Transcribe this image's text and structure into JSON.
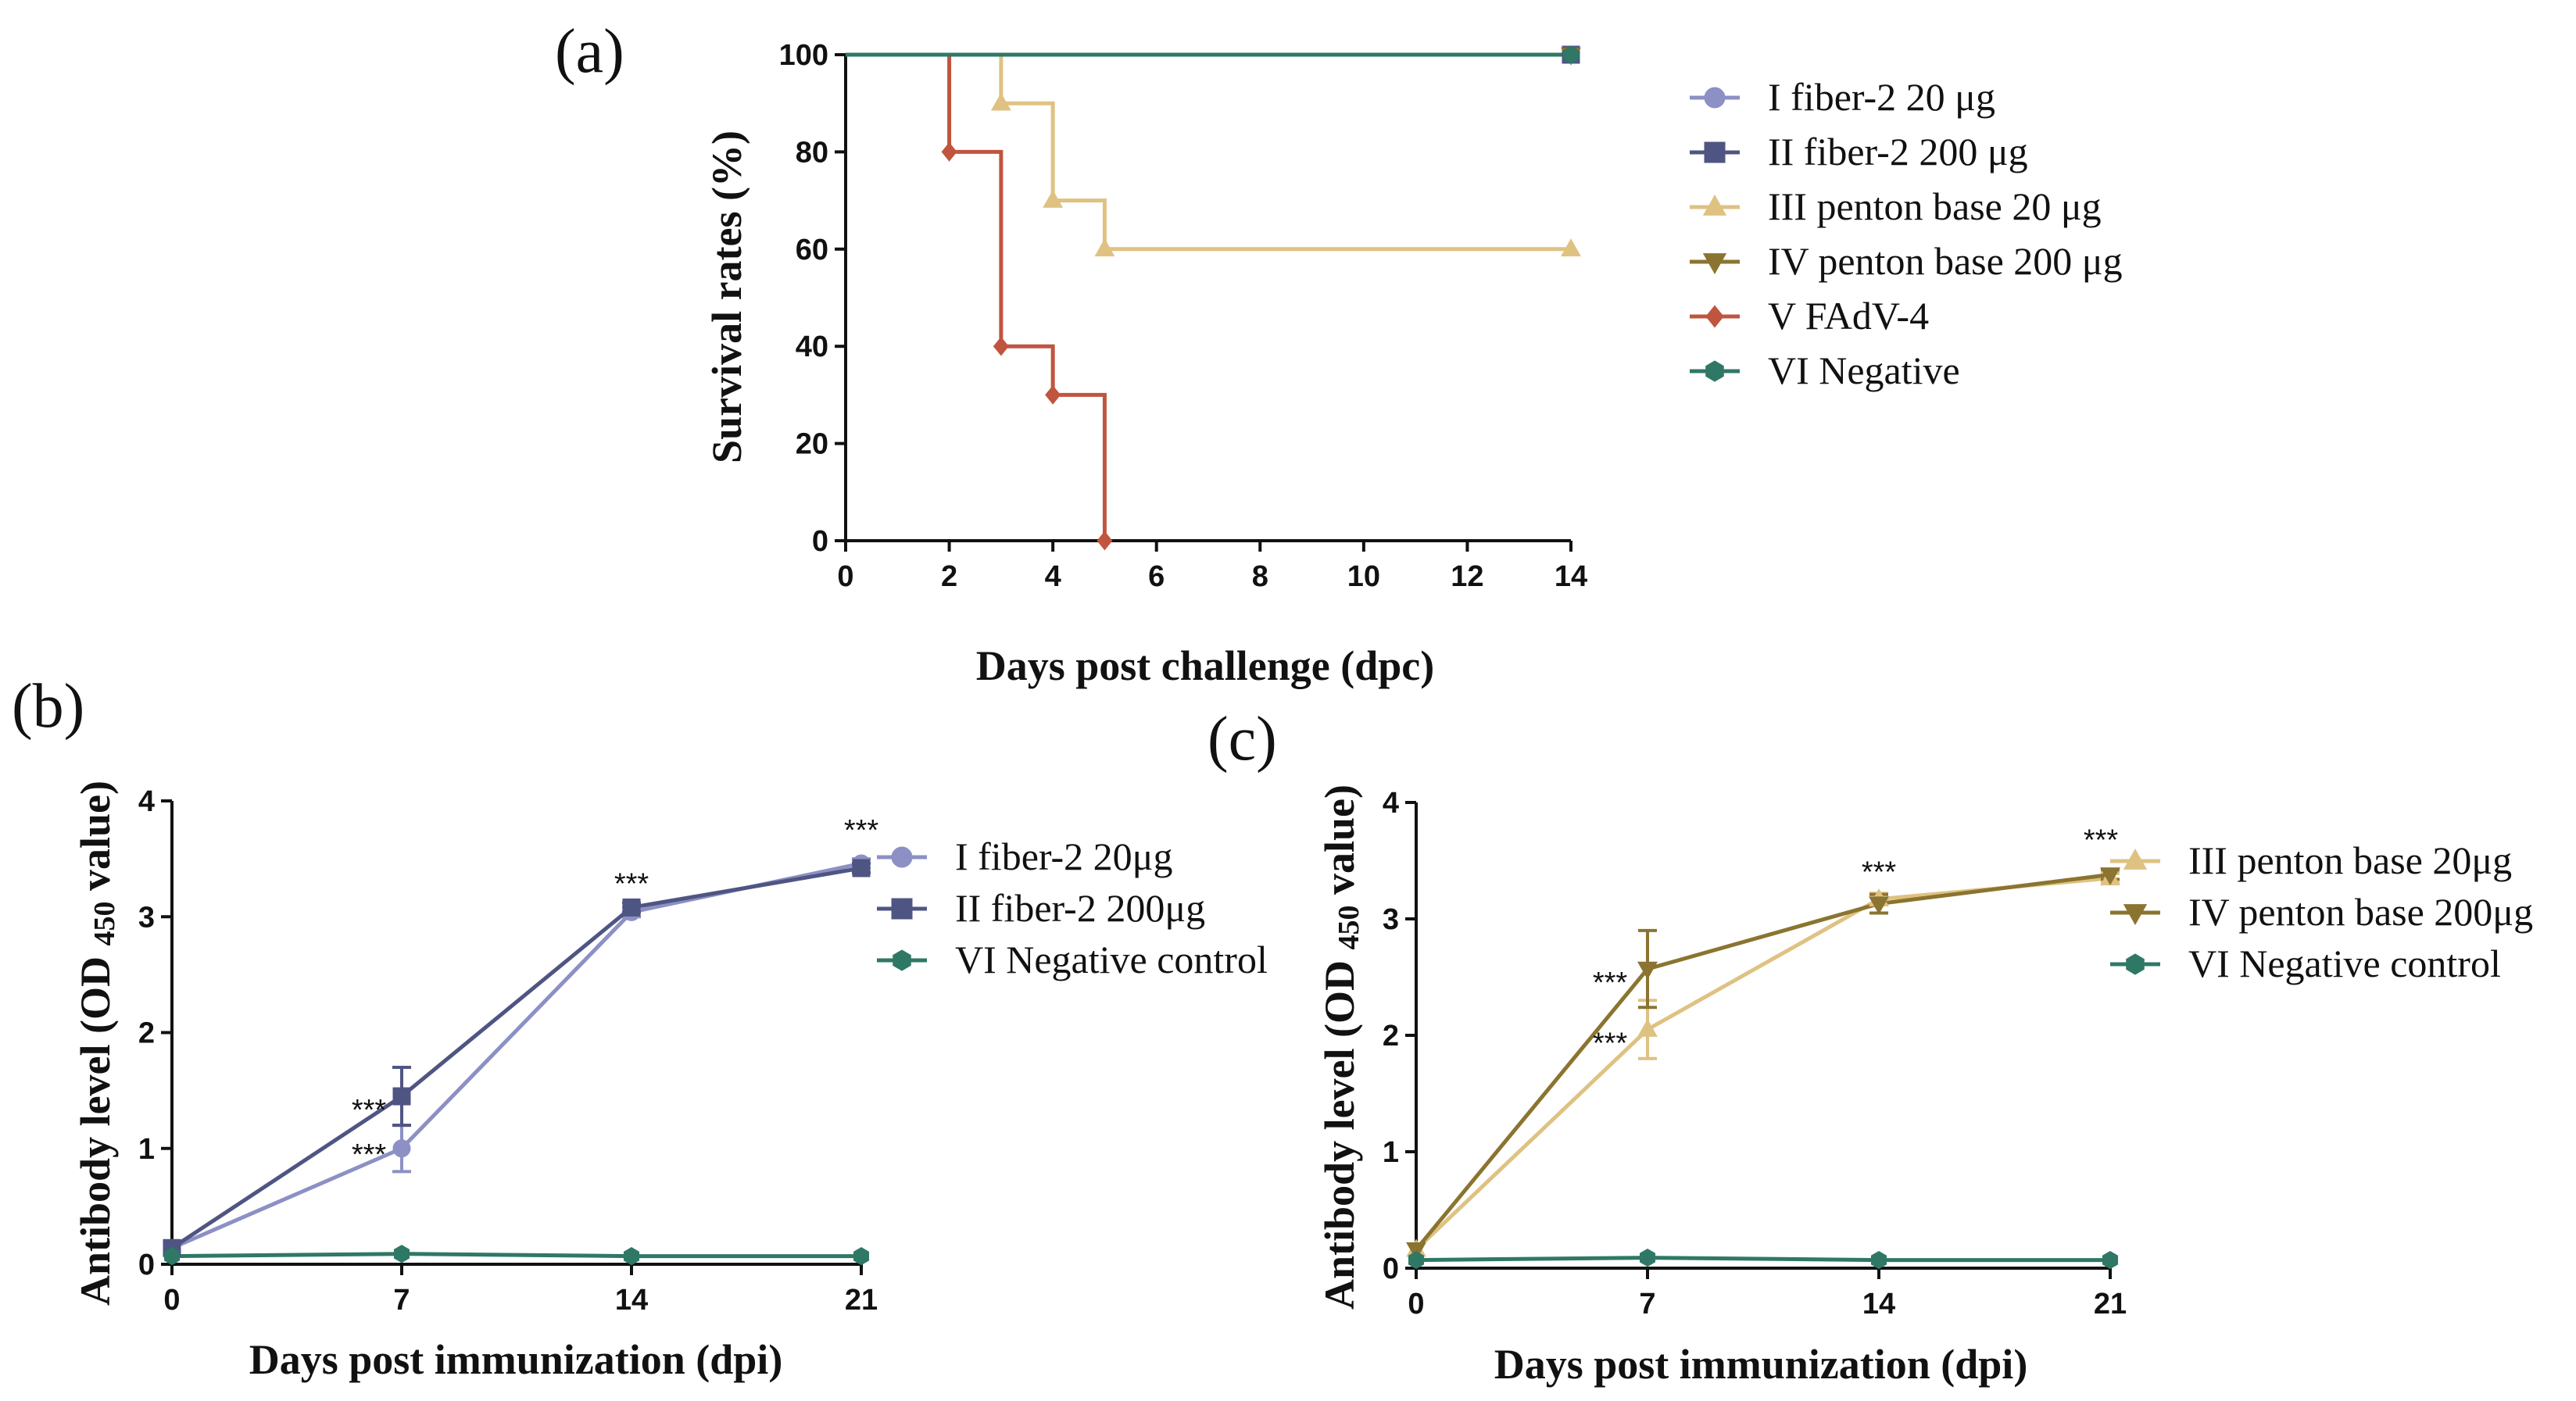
{
  "chart_data": [
    {
      "panel": "(a)",
      "type": "line",
      "step": true,
      "xlabel": "Days post challenge (dpc)",
      "ylabel": "Survival rates (%)",
      "xlim": [
        0,
        14
      ],
      "ylim": [
        0,
        100
      ],
      "xticks": [
        0,
        2,
        4,
        6,
        8,
        10,
        12,
        14
      ],
      "yticks": [
        0,
        20,
        40,
        60,
        80,
        100
      ],
      "legend_position": "right",
      "series": [
        {
          "name": "I fiber-2 20 μg",
          "color": "#8c90c4",
          "marker": "circle",
          "points": [
            [
              0,
              100
            ],
            [
              14,
              100
            ]
          ],
          "markers": [
            [
              14,
              100
            ]
          ]
        },
        {
          "name": "II fiber-2 200 μg",
          "color": "#4f5583",
          "marker": "square",
          "points": [
            [
              0,
              100
            ],
            [
              14,
              100
            ]
          ],
          "markers": [
            [
              14,
              100
            ]
          ]
        },
        {
          "name": "III penton base 20 μg",
          "color": "#dfc282",
          "marker": "triangle-up",
          "points": [
            [
              0,
              100
            ],
            [
              3,
              100
            ],
            [
              3,
              90
            ],
            [
              4,
              90
            ],
            [
              4,
              70
            ],
            [
              5,
              70
            ],
            [
              5,
              60
            ],
            [
              14,
              60
            ]
          ],
          "markers": [
            [
              3,
              90
            ],
            [
              4,
              70
            ],
            [
              5,
              60
            ],
            [
              14,
              60
            ]
          ]
        },
        {
          "name": "IV penton base 200 μg",
          "color": "#8b7430",
          "marker": "triangle-down",
          "points": [
            [
              0,
              100
            ],
            [
              14,
              100
            ]
          ],
          "markers": [
            [
              14,
              100
            ]
          ]
        },
        {
          "name": "V FAdV-4",
          "color": "#c0553f",
          "marker": "diamond",
          "points": [
            [
              0,
              100
            ],
            [
              2,
              100
            ],
            [
              2,
              80
            ],
            [
              3,
              80
            ],
            [
              3,
              40
            ],
            [
              4,
              40
            ],
            [
              4,
              30
            ],
            [
              5,
              30
            ],
            [
              5,
              0
            ]
          ],
          "markers": [
            [
              2,
              80
            ],
            [
              3,
              40
            ],
            [
              4,
              30
            ],
            [
              5,
              0
            ]
          ]
        },
        {
          "name": "VI Negative",
          "color": "#2f7866",
          "marker": "hexagon",
          "points": [
            [
              0,
              100
            ],
            [
              14,
              100
            ]
          ],
          "markers": [
            [
              14,
              100
            ]
          ]
        }
      ]
    },
    {
      "panel": "(b)",
      "type": "line",
      "xlabel": "Days post immunization (dpi)",
      "ylabel_main": "Antibody level (OD ",
      "ylabel_sub": "450",
      "ylabel_tail": " value)",
      "xlim": [
        0,
        21
      ],
      "ylim": [
        0,
        4
      ],
      "xticks": [
        0,
        7,
        14,
        21
      ],
      "yticks": [
        0,
        1,
        2,
        3,
        4
      ],
      "legend_position": "right",
      "series": [
        {
          "name": "I fiber-2 20μg",
          "color": "#8c90c4",
          "marker": "circle",
          "x": [
            0,
            7,
            14,
            21
          ],
          "y": [
            0.14,
            1.0,
            3.04,
            3.46
          ],
          "err": [
            0,
            0.2,
            0.04,
            0.04
          ]
        },
        {
          "name": "II fiber-2 200μg",
          "color": "#4f5583",
          "marker": "square",
          "x": [
            0,
            7,
            14,
            21
          ],
          "y": [
            0.14,
            1.45,
            3.08,
            3.42
          ],
          "err": [
            0,
            0.25,
            0.04,
            0.04
          ]
        },
        {
          "name": "VI Negative control",
          "color": "#2f7866",
          "marker": "hexagon",
          "x": [
            0,
            7,
            14,
            21
          ],
          "y": [
            0.07,
            0.09,
            0.07,
            0.07
          ],
          "err": [
            0,
            0,
            0,
            0
          ]
        }
      ],
      "annotations": [
        {
          "text": "***",
          "x": 7,
          "y": 1.45
        },
        {
          "text": "***",
          "x": 7,
          "y": 1.0
        },
        {
          "text": "***",
          "x": 14,
          "y": 3.08
        },
        {
          "text": "***",
          "x": 21,
          "y": 3.46
        }
      ]
    },
    {
      "panel": "(c)",
      "type": "line",
      "xlabel": "Days post immunization (dpi)",
      "ylabel_main": "Antibody level (OD ",
      "ylabel_sub": "450",
      "ylabel_tail": " value)",
      "xlim": [
        0,
        21
      ],
      "ylim": [
        0,
        4
      ],
      "xticks": [
        0,
        7,
        14,
        21
      ],
      "yticks": [
        0,
        1,
        2,
        3,
        4
      ],
      "legend_position": "right",
      "series": [
        {
          "name": "III penton base 20μg",
          "color": "#dfc282",
          "marker": "triangle-up",
          "x": [
            0,
            7,
            14,
            21
          ],
          "y": [
            0.16,
            2.05,
            3.17,
            3.35
          ],
          "err": [
            0,
            0.25,
            0.05,
            0.04
          ]
        },
        {
          "name": "IV penton base 200μg",
          "color": "#8b7430",
          "marker": "triangle-down",
          "x": [
            0,
            7,
            14,
            21
          ],
          "y": [
            0.16,
            2.57,
            3.13,
            3.38
          ],
          "err": [
            0,
            0.33,
            0.08,
            0.04
          ]
        },
        {
          "name": "VI Negative control",
          "color": "#2f7866",
          "marker": "hexagon",
          "x": [
            0,
            7,
            14,
            21
          ],
          "y": [
            0.07,
            0.09,
            0.07,
            0.07
          ],
          "err": [
            0,
            0,
            0,
            0
          ]
        }
      ],
      "annotations": [
        {
          "text": "***",
          "x": 7,
          "y": 2.57
        },
        {
          "text": "***",
          "x": 7,
          "y": 2.05
        },
        {
          "text": "***",
          "x": 14,
          "y": 3.17
        },
        {
          "text": "***",
          "x": 21,
          "y": 3.38
        }
      ]
    }
  ]
}
